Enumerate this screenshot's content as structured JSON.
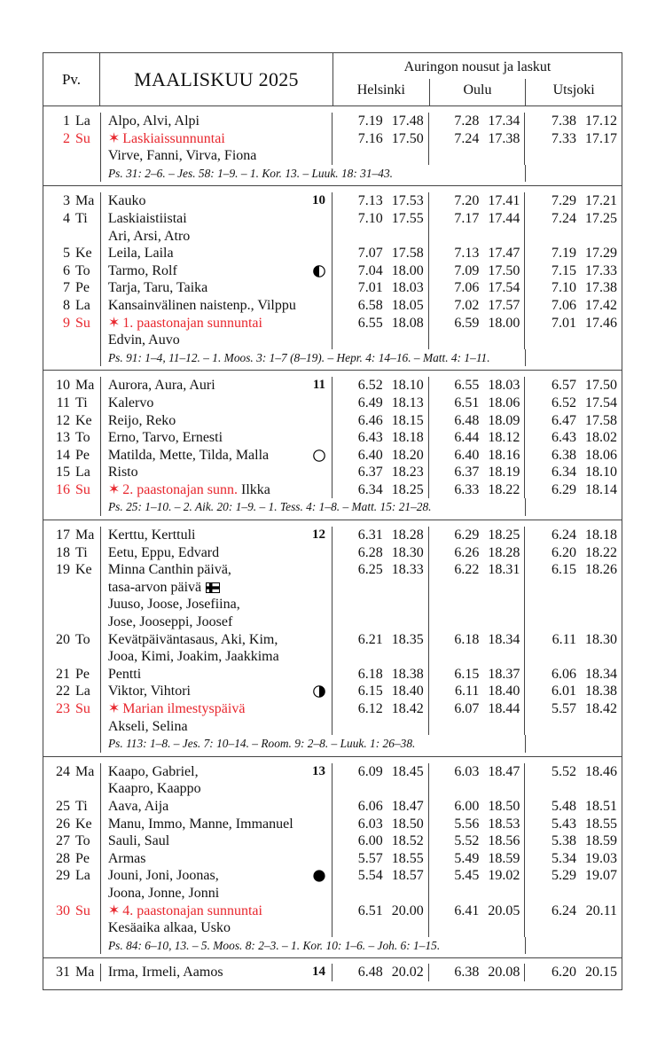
{
  "header": {
    "pv": "Pv.",
    "title": "MAALISKUU 2025",
    "sun_title": "Auringon nousut ja laskut",
    "cities": [
      "Helsinki",
      "Oulu",
      "Utsjoki"
    ]
  },
  "colors": {
    "sunday_red": "#e8262d"
  },
  "sections": [
    {
      "rows": [
        {
          "day": "1",
          "wd": "La",
          "name": "Alpo, Alvi, Alpi",
          "t": [
            "7.19",
            "17.48",
            "7.28",
            "17.34",
            "7.38",
            "17.12"
          ]
        },
        {
          "day": "2",
          "wd": "Su",
          "sunday": true,
          "star": "✶",
          "name": "Laskiaissunnuntai",
          "t": [
            "7.16",
            "17.50",
            "7.24",
            "17.38",
            "7.33",
            "17.17"
          ]
        },
        {
          "name": "Virve, Fanni, Virva, Fiona"
        }
      ],
      "verse": "Ps. 31: 2–6. – Jes. 58: 1–9. – 1. Kor. 13. – Luuk. 18: 31–43."
    },
    {
      "rows": [
        {
          "day": "3",
          "wd": "Ma",
          "name": "Kauko",
          "week": "10",
          "t": [
            "7.13",
            "17.53",
            "7.20",
            "17.41",
            "7.29",
            "17.21"
          ]
        },
        {
          "day": "4",
          "wd": "Ti",
          "name": "Laskiaistiistai",
          "t": [
            "7.10",
            "17.55",
            "7.17",
            "17.44",
            "7.24",
            "17.25"
          ]
        },
        {
          "name": "Ari, Arsi, Atro"
        },
        {
          "day": "5",
          "wd": "Ke",
          "name": "Leila, Laila",
          "t": [
            "7.07",
            "17.58",
            "7.13",
            "17.47",
            "7.19",
            "17.29"
          ]
        },
        {
          "day": "6",
          "wd": "To",
          "name": "Tarmo, Rolf",
          "moon": "first-quarter-moon",
          "t": [
            "7.04",
            "18.00",
            "7.09",
            "17.50",
            "7.15",
            "17.33"
          ]
        },
        {
          "day": "7",
          "wd": "Pe",
          "name": "Tarja, Taru, Taika",
          "t": [
            "7.01",
            "18.03",
            "7.06",
            "17.54",
            "7.10",
            "17.38"
          ]
        },
        {
          "day": "8",
          "wd": "La",
          "name": "Kansainvälinen naistenp., Vilppu",
          "t": [
            "6.58",
            "18.05",
            "7.02",
            "17.57",
            "7.06",
            "17.42"
          ]
        },
        {
          "day": "9",
          "wd": "Su",
          "sunday": true,
          "star": "✶",
          "name": "1. paastonajan sunnuntai",
          "t": [
            "6.55",
            "18.08",
            "6.59",
            "18.00",
            "7.01",
            "17.46"
          ]
        },
        {
          "name": "Edvin, Auvo"
        }
      ],
      "verse": "Ps. 91: 1–4, 11–12. – 1. Moos. 3: 1–7 (8–19). – Hepr. 4: 14–16. – Matt. 4: 1–11."
    },
    {
      "rows": [
        {
          "day": "10",
          "wd": "Ma",
          "name": "Aurora, Aura, Auri",
          "week": "11",
          "t": [
            "6.52",
            "18.10",
            "6.55",
            "18.03",
            "6.57",
            "17.50"
          ]
        },
        {
          "day": "11",
          "wd": "Ti",
          "name": "Kalervo",
          "t": [
            "6.49",
            "18.13",
            "6.51",
            "18.06",
            "6.52",
            "17.54"
          ]
        },
        {
          "day": "12",
          "wd": "Ke",
          "name": "Reijo, Reko",
          "t": [
            "6.46",
            "18.15",
            "6.48",
            "18.09",
            "6.47",
            "17.58"
          ]
        },
        {
          "day": "13",
          "wd": "To",
          "name": "Erno, Tarvo, Ernesti",
          "t": [
            "6.43",
            "18.18",
            "6.44",
            "18.12",
            "6.43",
            "18.02"
          ]
        },
        {
          "day": "14",
          "wd": "Pe",
          "name": "Matilda, Mette, Tilda, Malla",
          "moon": "full-moon",
          "t": [
            "6.40",
            "18.20",
            "6.40",
            "18.16",
            "6.38",
            "18.06"
          ]
        },
        {
          "day": "15",
          "wd": "La",
          "name": "Risto",
          "t": [
            "6.37",
            "18.23",
            "6.37",
            "18.19",
            "6.34",
            "18.10"
          ]
        },
        {
          "day": "16",
          "wd": "Su",
          "sunday": true,
          "star": "✶",
          "name": "2. paastonajan sunn.",
          "name_extra": " Ilkka",
          "t": [
            "6.34",
            "18.25",
            "6.33",
            "18.22",
            "6.29",
            "18.14"
          ]
        }
      ],
      "verse": "Ps. 25: 1–10. – 2. Aik. 20: 1–9. – 1. Tess. 4: 1–8. – Matt. 15: 21–28."
    },
    {
      "rows": [
        {
          "day": "17",
          "wd": "Ma",
          "name": "Kerttu, Kerttuli",
          "week": "12",
          "t": [
            "6.31",
            "18.28",
            "6.29",
            "18.25",
            "6.24",
            "18.18"
          ]
        },
        {
          "day": "18",
          "wd": "Ti",
          "name": "Eetu, Eppu, Edvard",
          "t": [
            "6.28",
            "18.30",
            "6.26",
            "18.28",
            "6.20",
            "18.22"
          ]
        },
        {
          "day": "19",
          "wd": "Ke",
          "name": "Minna Canthin päivä,",
          "t": [
            "6.25",
            "18.33",
            "6.22",
            "18.31",
            "6.15",
            "18.26"
          ]
        },
        {
          "name": "tasa-arvon päivä",
          "flag": "flag-icon"
        },
        {
          "name": "Juuso, Joose, Josefiina,"
        },
        {
          "name": "Jose, Jooseppi, Joosef"
        },
        {
          "day": "20",
          "wd": "To",
          "name": "Kevätpäiväntasaus, Aki, Kim,",
          "t": [
            "6.21",
            "18.35",
            "6.18",
            "18.34",
            "6.11",
            "18.30"
          ]
        },
        {
          "name": "Jooa, Kimi, Joakim, Jaakkima"
        },
        {
          "day": "21",
          "wd": "Pe",
          "name": "Pentti",
          "t": [
            "6.18",
            "18.38",
            "6.15",
            "18.37",
            "6.06",
            "18.34"
          ]
        },
        {
          "day": "22",
          "wd": "La",
          "name": "Viktor, Vihtori",
          "moon": "last-quarter-moon",
          "t": [
            "6.15",
            "18.40",
            "6.11",
            "18.40",
            "6.01",
            "18.38"
          ]
        },
        {
          "day": "23",
          "wd": "Su",
          "sunday": true,
          "star": "✶",
          "name": "Marian ilmestyspäivä",
          "t": [
            "6.12",
            "18.42",
            "6.07",
            "18.44",
            "5.57",
            "18.42"
          ]
        },
        {
          "name": "Akseli, Selina"
        }
      ],
      "verse": "Ps. 113: 1–8. – Jes. 7: 10–14. – Room. 9: 2–8. – Luuk. 1: 26–38."
    },
    {
      "rows": [
        {
          "day": "24",
          "wd": "Ma",
          "name": "Kaapo, Gabriel,",
          "week": "13",
          "t": [
            "6.09",
            "18.45",
            "6.03",
            "18.47",
            "5.52",
            "18.46"
          ]
        },
        {
          "name": "Kaapro, Kaappo"
        },
        {
          "day": "25",
          "wd": "Ti",
          "name": "Aava, Aija",
          "t": [
            "6.06",
            "18.47",
            "6.00",
            "18.50",
            "5.48",
            "18.51"
          ]
        },
        {
          "day": "26",
          "wd": "Ke",
          "name": "Manu, Immo, Manne, Immanuel",
          "t": [
            "6.03",
            "18.50",
            "5.56",
            "18.53",
            "5.43",
            "18.55"
          ]
        },
        {
          "day": "27",
          "wd": "To",
          "name": "Sauli, Saul",
          "t": [
            "6.00",
            "18.52",
            "5.52",
            "18.56",
            "5.38",
            "18.59"
          ]
        },
        {
          "day": "28",
          "wd": "Pe",
          "name": "Armas",
          "t": [
            "5.57",
            "18.55",
            "5.49",
            "18.59",
            "5.34",
            "19.03"
          ]
        },
        {
          "day": "29",
          "wd": "La",
          "name": "Jouni, Joni, Joonas,",
          "moon": "new-moon",
          "t": [
            "5.54",
            "18.57",
            "5.45",
            "19.02",
            "5.29",
            "19.07"
          ]
        },
        {
          "name": "Joona, Jonne, Jonni"
        },
        {
          "day": "30",
          "wd": "Su",
          "sunday": true,
          "star": "✶",
          "name": "4. paastonajan sunnuntai",
          "t": [
            "6.51",
            "20.00",
            "6.41",
            "20.05",
            "6.24",
            "20.11"
          ]
        },
        {
          "name": "Kesäaika alkaa, Usko"
        }
      ],
      "verse": "Ps. 84: 6–10, 13. – 5. Moos. 8: 2–3. – 1. Kor. 10: 1–6. – Joh. 6: 1–15."
    },
    {
      "rows": [
        {
          "day": "31",
          "wd": "Ma",
          "name": "Irma, Irmeli, Aamos",
          "week": "14",
          "t": [
            "6.48",
            "20.02",
            "6.38",
            "20.08",
            "6.20",
            "20.15"
          ]
        }
      ]
    }
  ]
}
